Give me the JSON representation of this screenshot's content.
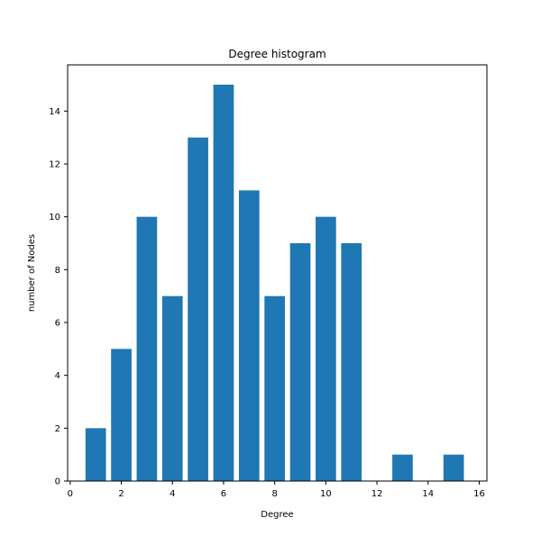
{
  "chart_data": {
    "type": "bar",
    "title": "Degree histogram",
    "xlabel": "Degree",
    "ylabel": "number of Nodes",
    "x": [
      1,
      2,
      3,
      4,
      5,
      6,
      7,
      8,
      9,
      10,
      11,
      13,
      15
    ],
    "values": [
      2,
      5,
      10,
      7,
      13,
      15,
      11,
      7,
      9,
      10,
      9,
      1,
      1
    ],
    "bar_width": 0.8,
    "xlim": [
      -0.1,
      16.3
    ],
    "ylim": [
      0,
      15.75
    ],
    "xticks": [
      0,
      2,
      4,
      6,
      8,
      10,
      12,
      14,
      16
    ],
    "yticks": [
      0,
      2,
      4,
      6,
      8,
      10,
      12,
      14
    ],
    "bar_color": "#1f77b4",
    "grid": false,
    "legend": "none"
  }
}
